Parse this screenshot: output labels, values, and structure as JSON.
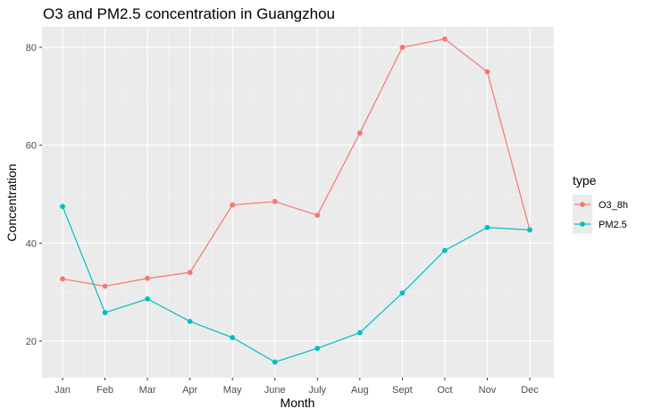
{
  "chart_data": {
    "type": "line",
    "title": "O3 and PM2.5 concentration in Guangzhou",
    "xlabel": "Month",
    "ylabel": "Concentration",
    "categories": [
      "Jan",
      "Feb",
      "Mar",
      "Apr",
      "May",
      "June",
      "July",
      "Aug",
      "Sept",
      "Oct",
      "Nov",
      "Dec"
    ],
    "ylim": [
      12.5,
      84.2
    ],
    "yticks": [
      20,
      40,
      60,
      80
    ],
    "grid": true,
    "legend_title": "type",
    "legend_position": "right",
    "series": [
      {
        "name": "O3_8h",
        "color": "#f8766d",
        "values": [
          32.7,
          31.2,
          32.8,
          34.0,
          47.8,
          48.5,
          45.7,
          62.5,
          80.0,
          81.7,
          75.0,
          42.7
        ]
      },
      {
        "name": "PM2.5",
        "color": "#00bfc4",
        "values": [
          47.5,
          25.8,
          28.6,
          24.0,
          20.7,
          15.7,
          18.5,
          21.7,
          29.8,
          38.5,
          43.2,
          42.7
        ]
      }
    ]
  }
}
